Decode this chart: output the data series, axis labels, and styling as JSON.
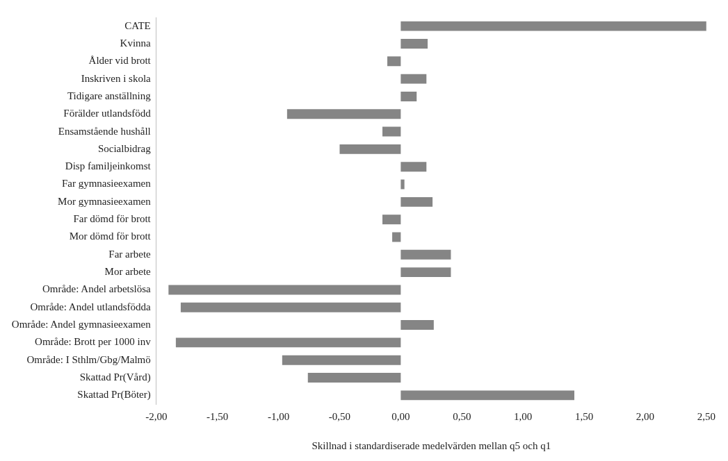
{
  "chart_data": {
    "type": "bar",
    "orientation": "horizontal",
    "xlabel": "Skillnad i standardiserade medelvärden mellan q5 och q1",
    "categories": [
      "CATE",
      "Kvinna",
      "Ålder vid brott",
      "Inskriven i skola",
      "Tidigare anställning",
      "Förälder utlandsfödd",
      "Ensamstående hushåll",
      "Socialbidrag",
      "Disp familjeinkomst",
      "Far gymnasieexamen",
      "Mor gymnasieexamen",
      "Far dömd för brott",
      "Mor dömd för brott",
      "Far arbete",
      "Mor arbete",
      "Område: Andel arbetslösa",
      "Område: Andel utlandsfödda",
      "Område: Andel gymnasieexamen",
      "Område: Brott per 1000 inv",
      "Område: I Sthlm/Gbg/Malmö",
      "Skattad Pr(Vård)",
      "Skattad Pr(Böter)"
    ],
    "values": [
      2.5,
      0.22,
      -0.11,
      0.21,
      0.13,
      -0.93,
      -0.15,
      -0.5,
      0.21,
      0.03,
      0.26,
      -0.15,
      -0.07,
      0.41,
      0.41,
      -1.9,
      -1.8,
      0.27,
      -1.84,
      -0.97,
      -0.76,
      1.42
    ],
    "color": "#858585",
    "xlim": [
      -2,
      2.5
    ],
    "xticks": [
      {
        "value": -2,
        "label": "-2,00"
      },
      {
        "value": -1.5,
        "label": "-1,50"
      },
      {
        "value": -1,
        "label": "-1,00"
      },
      {
        "value": -0.5,
        "label": "-0,50"
      },
      {
        "value": 0,
        "label": "0,00"
      },
      {
        "value": 0.5,
        "label": "0,50"
      },
      {
        "value": 1,
        "label": "1,00"
      },
      {
        "value": 1.5,
        "label": "1,50"
      },
      {
        "value": 2,
        "label": "2,00"
      },
      {
        "value": 2.5,
        "label": "2,50"
      }
    ],
    "grid": false,
    "legend": false
  }
}
